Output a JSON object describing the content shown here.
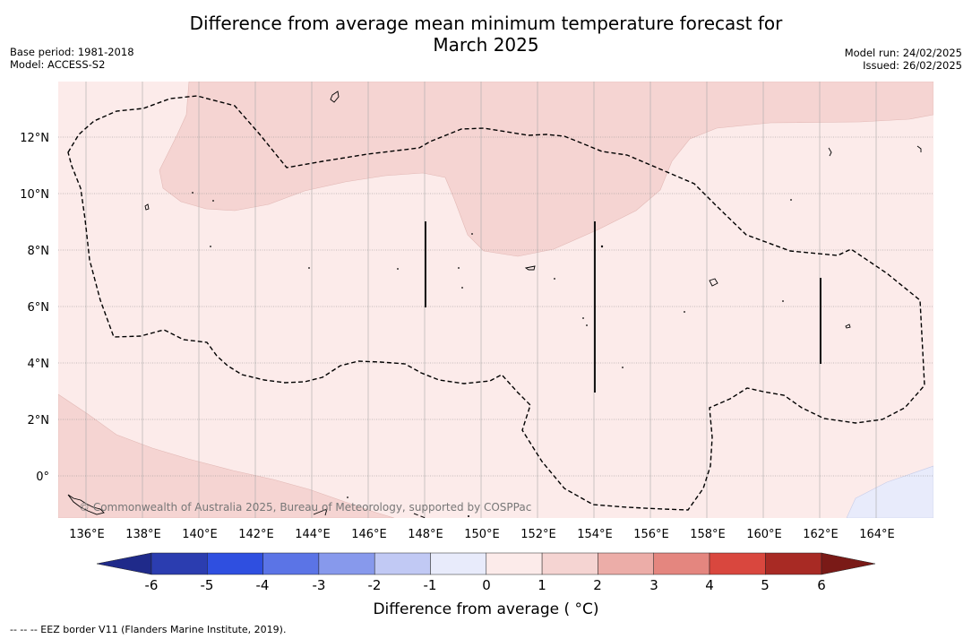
{
  "title_line1": "Difference from average mean minimum temperature forecast for",
  "title_line2": "March 2025",
  "base_period": "Base period: 1981-2018",
  "model": "Model: ACCESS-S2",
  "model_run": "Model run: 24/02/2025",
  "issued": "Issued: 26/02/2025",
  "copyright": "© Commonwealth of Australia 2025, Bureau of Meteorology, supported by COSPPac",
  "footnote": "-- -- -- EEZ border V11 (Flanders Marine Institute, 2019).",
  "map": {
    "lon_ticks": [
      "136°E",
      "138°E",
      "140°E",
      "142°E",
      "144°E",
      "146°E",
      "148°E",
      "150°E",
      "152°E",
      "154°E",
      "156°E",
      "158°E",
      "160°E",
      "162°E",
      "164°E"
    ],
    "lat_ticks": [
      "12°N",
      "10°N",
      "8°N",
      "6°N",
      "4°N",
      "2°N",
      "0°"
    ],
    "lon_range": [
      135,
      166
    ],
    "lat_range": [
      -1.5,
      14
    ]
  },
  "colorbar": {
    "title": "Difference from average ( °C)",
    "ticks": [
      "-6",
      "-5",
      "-4",
      "-3",
      "-2",
      "-1",
      "0",
      "1",
      "2",
      "3",
      "4",
      "5",
      "6"
    ],
    "colors": [
      "#1f2a8a",
      "#2b3db0",
      "#2f4fe0",
      "#5b74e6",
      "#8799ec",
      "#c1c9f4",
      "#e8ebfb",
      "#fcebea",
      "#f5d4d2",
      "#ecada8",
      "#e4867f",
      "#d9473e",
      "#a82a24",
      "#7a1a17"
    ]
  }
}
